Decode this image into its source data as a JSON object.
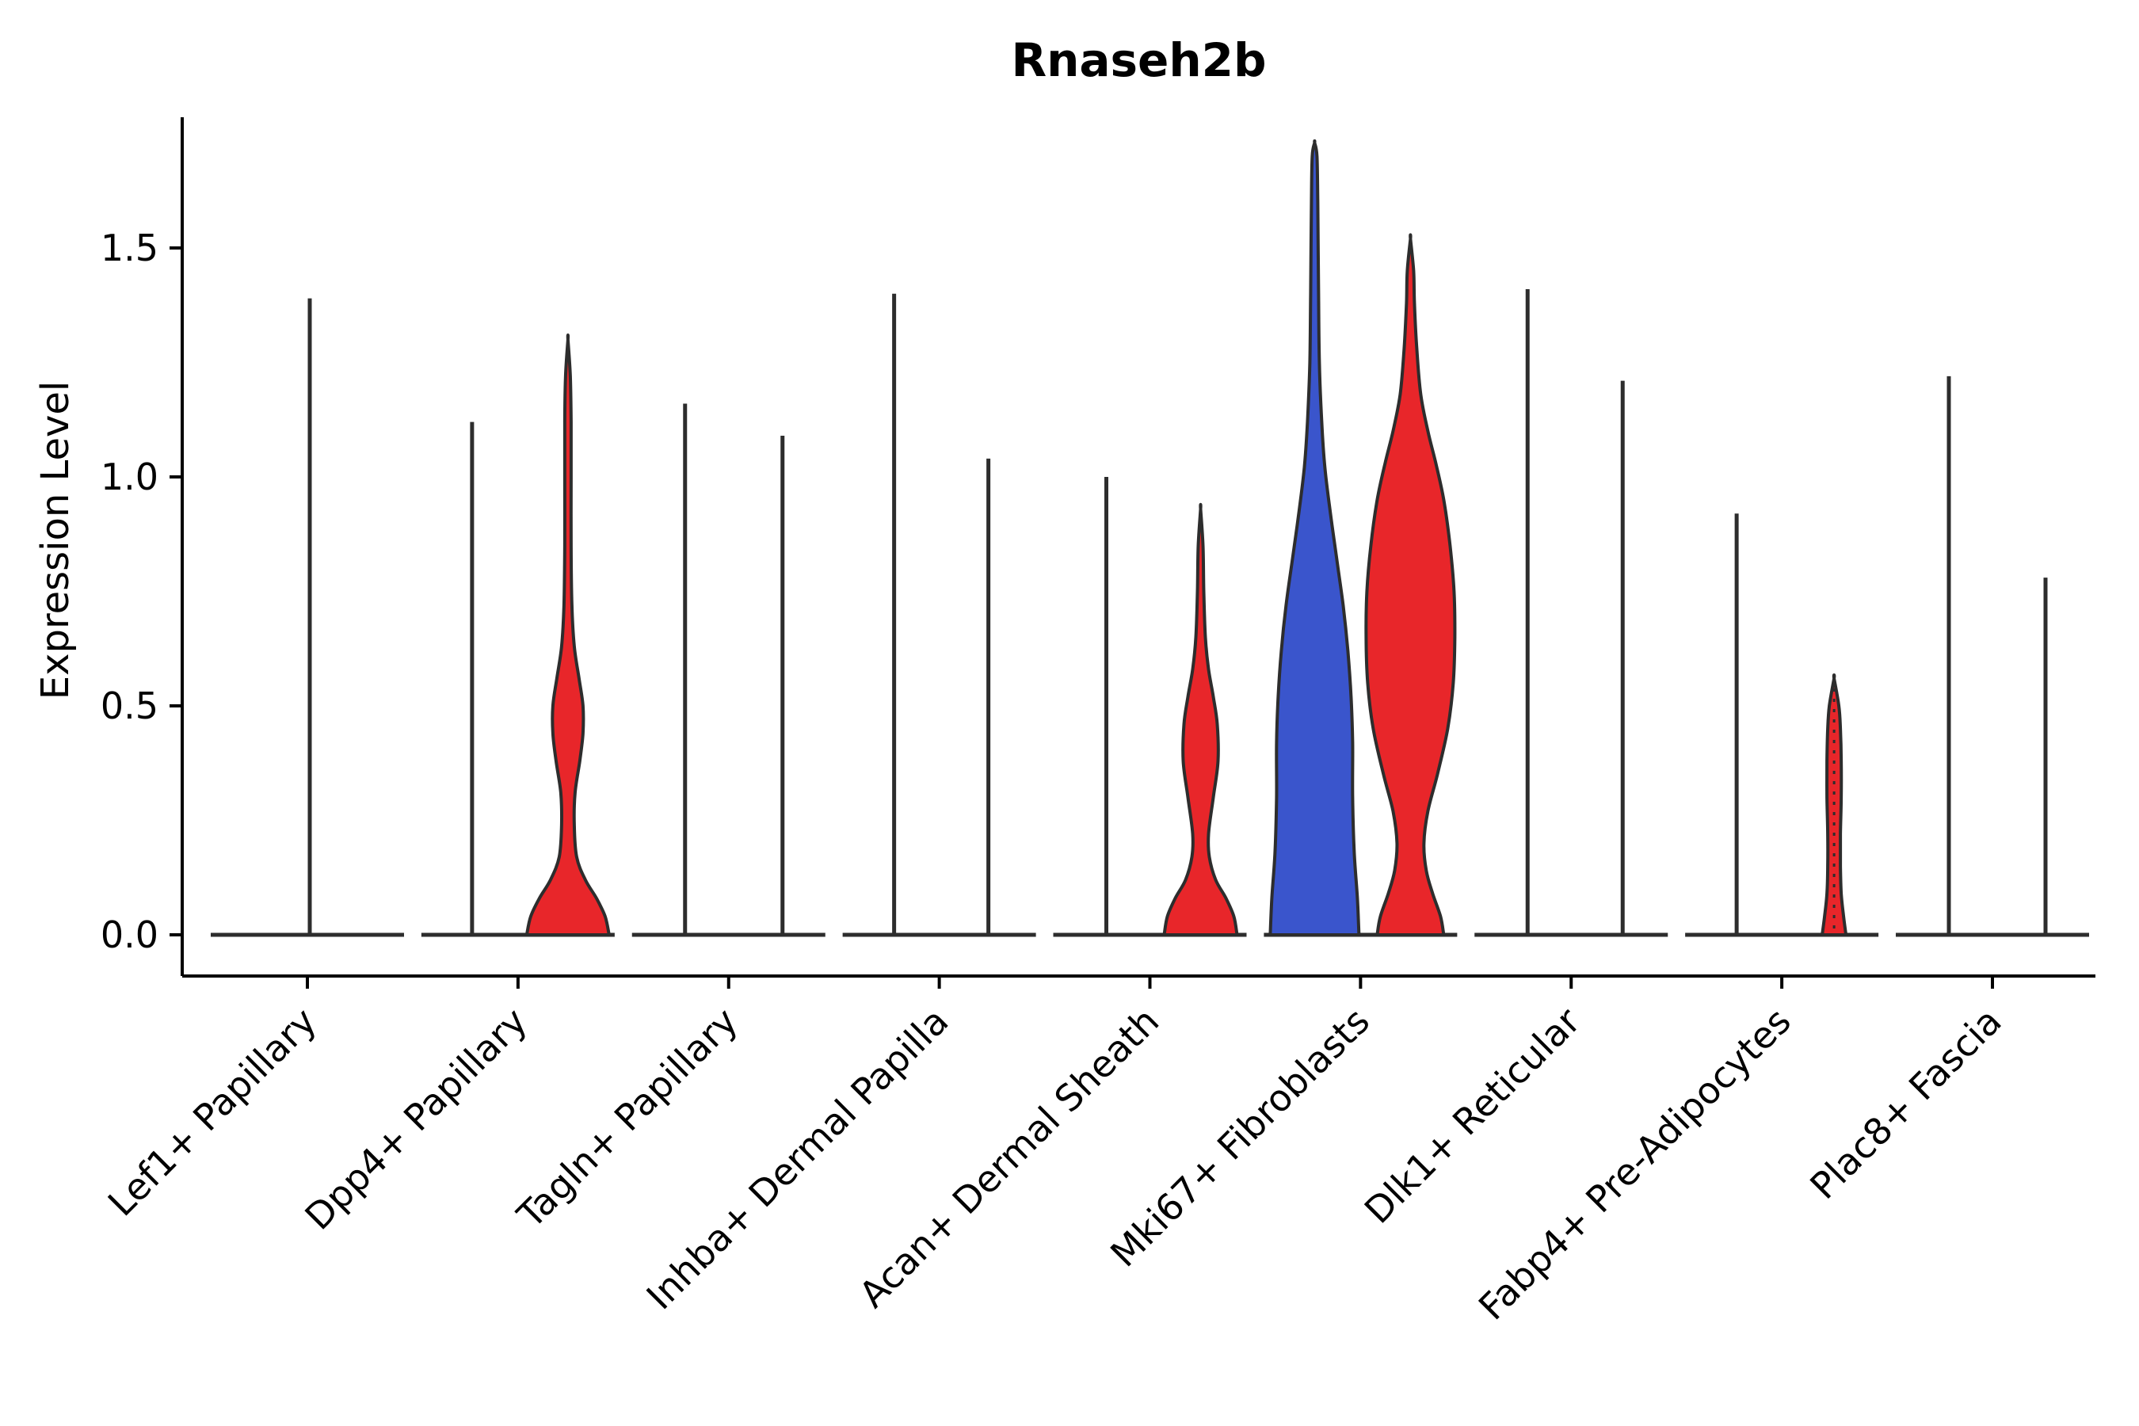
{
  "colors": {
    "red": "#e8262a",
    "blue": "#3a55cc",
    "outline": "#2d2d2d",
    "axis": "#000000"
  },
  "chart_data": {
    "type": "violin",
    "title": "Rnaseh2b",
    "ylabel": "Expression Level",
    "ylim": [
      -0.09,
      1.82
    ],
    "grid": false,
    "yticks": [
      {
        "label": "0.0",
        "value": 0.0
      },
      {
        "label": "0.5",
        "value": 0.5
      },
      {
        "label": "1.0",
        "value": 1.0
      },
      {
        "label": "1.5",
        "value": 1.5
      }
    ],
    "categories": [
      "Lef1+ Papillary",
      "Dpp4+ Papillary",
      "Tagln+ Papillary",
      "Inhba+ Dermal Papilla",
      "Acan+ Dermal Sheath",
      "Mki67+ Fibroblasts",
      "Dlk1+ Reticular",
      "Fabp4+ Pre-Adipocytes",
      "Plac8+ Fascia"
    ],
    "groups": [
      {
        "label": "Lef1+ Papillary",
        "violins": [
          {
            "kind": "spike",
            "offset": 3,
            "max": 1.39
          }
        ]
      },
      {
        "label": "Dpp4+ Papillary",
        "violins": [
          {
            "kind": "spike",
            "offset": -58,
            "max": 1.12
          },
          {
            "kind": "profile",
            "offset": 63,
            "max": 1.3,
            "fill": "red",
            "profile": [
              [
                0,
                52
              ],
              [
                0.04,
                47
              ],
              [
                0.08,
                36
              ],
              [
                0.12,
                22
              ],
              [
                0.17,
                11
              ],
              [
                0.24,
                8
              ],
              [
                0.31,
                9
              ],
              [
                0.38,
                15
              ],
              [
                0.44,
                19
              ],
              [
                0.5,
                19
              ],
              [
                0.56,
                14
              ],
              [
                0.63,
                8
              ],
              [
                0.72,
                5
              ],
              [
                0.85,
                4
              ],
              [
                1.0,
                4
              ],
              [
                1.12,
                4
              ],
              [
                1.22,
                3
              ],
              [
                1.3,
                0
              ]
            ]
          }
        ]
      },
      {
        "label": "Tagln+ Papillary",
        "violins": [
          {
            "kind": "spike",
            "offset": -55,
            "max": 1.16
          },
          {
            "kind": "spike",
            "offset": 68,
            "max": 1.09
          }
        ]
      },
      {
        "label": "Inhba+ Dermal Papilla",
        "violins": [
          {
            "kind": "spike",
            "offset": -57,
            "max": 1.4
          },
          {
            "kind": "spike",
            "offset": 62,
            "max": 1.04
          }
        ]
      },
      {
        "label": "Acan+ Dermal Sheath",
        "violins": [
          {
            "kind": "spike",
            "offset": -55,
            "max": 1.0
          },
          {
            "kind": "profile",
            "offset": 64,
            "max": 0.93,
            "fill": "red",
            "profile": [
              [
                0,
                46
              ],
              [
                0.04,
                42
              ],
              [
                0.08,
                32
              ],
              [
                0.12,
                19
              ],
              [
                0.17,
                11
              ],
              [
                0.22,
                10
              ],
              [
                0.3,
                16
              ],
              [
                0.38,
                22
              ],
              [
                0.46,
                21
              ],
              [
                0.52,
                16
              ],
              [
                0.58,
                10
              ],
              [
                0.65,
                6
              ],
              [
                0.75,
                4
              ],
              [
                0.85,
                3
              ],
              [
                0.93,
                0
              ]
            ]
          }
        ]
      },
      {
        "label": "Mki67+ Fibroblasts",
        "violins": [
          {
            "kind": "profile",
            "offset": -58,
            "max": 1.73,
            "fill": "blue",
            "profile": [
              [
                0,
                56
              ],
              [
                0.08,
                54
              ],
              [
                0.18,
                50
              ],
              [
                0.3,
                48
              ],
              [
                0.42,
                48
              ],
              [
                0.52,
                46
              ],
              [
                0.62,
                42
              ],
              [
                0.72,
                36
              ],
              [
                0.82,
                28
              ],
              [
                0.92,
                20
              ],
              [
                1.02,
                13
              ],
              [
                1.12,
                9
              ],
              [
                1.25,
                6
              ],
              [
                1.4,
                5
              ],
              [
                1.6,
                4
              ],
              [
                1.7,
                3
              ],
              [
                1.73,
                0
              ]
            ]
          },
          {
            "kind": "profile",
            "offset": 63,
            "max": 1.52,
            "fill": "red",
            "profile": [
              [
                0,
                42
              ],
              [
                0.04,
                38
              ],
              [
                0.09,
                28
              ],
              [
                0.14,
                20
              ],
              [
                0.2,
                17
              ],
              [
                0.27,
                22
              ],
              [
                0.35,
                34
              ],
              [
                0.45,
                47
              ],
              [
                0.55,
                54
              ],
              [
                0.65,
                56
              ],
              [
                0.75,
                55
              ],
              [
                0.85,
                50
              ],
              [
                0.95,
                42
              ],
              [
                1.03,
                32
              ],
              [
                1.1,
                22
              ],
              [
                1.18,
                13
              ],
              [
                1.28,
                8
              ],
              [
                1.38,
                5
              ],
              [
                1.45,
                4
              ],
              [
                1.52,
                0
              ]
            ]
          }
        ]
      },
      {
        "label": "Dlk1+ Reticular",
        "violins": [
          {
            "kind": "spike",
            "offset": -55,
            "max": 1.41
          },
          {
            "kind": "spike",
            "offset": 65,
            "max": 1.21
          }
        ]
      },
      {
        "label": "Fabp4+ Pre-Adipocytes",
        "violins": [
          {
            "kind": "spike",
            "offset": -57,
            "max": 0.92
          },
          {
            "kind": "profile",
            "offset": 66,
            "max": 0.56,
            "fill": "red",
            "dashed": true,
            "profile": [
              [
                0,
                15
              ],
              [
                0.04,
                12
              ],
              [
                0.09,
                9
              ],
              [
                0.15,
                8
              ],
              [
                0.22,
                8
              ],
              [
                0.3,
                9
              ],
              [
                0.38,
                9
              ],
              [
                0.45,
                8
              ],
              [
                0.5,
                6
              ],
              [
                0.56,
                0
              ]
            ]
          }
        ]
      },
      {
        "label": "Plac8+ Fascia",
        "violins": [
          {
            "kind": "spike",
            "offset": -55,
            "max": 1.22
          },
          {
            "kind": "spike",
            "offset": 67,
            "max": 0.78
          }
        ]
      }
    ]
  }
}
